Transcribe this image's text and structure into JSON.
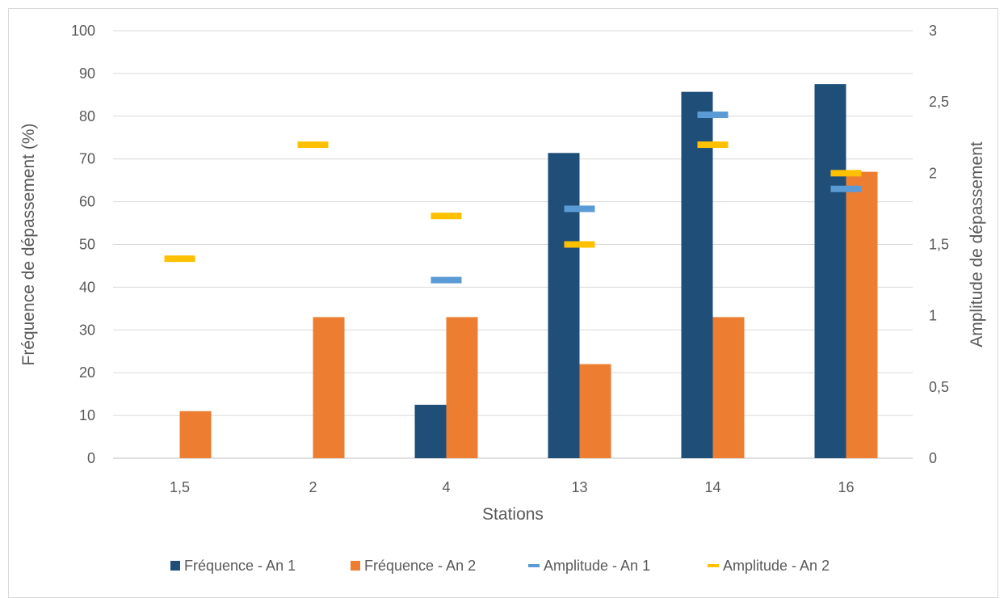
{
  "chart_data": {
    "type": "bar",
    "categories": [
      "1,5",
      "2",
      "4",
      "13",
      "14",
      "16"
    ],
    "series": [
      {
        "name": "Fréquence - An 1",
        "kind": "bar",
        "axis": "left",
        "color": "#1f4e79",
        "values": [
          0,
          0,
          12.5,
          71.4,
          85.7,
          87.5
        ]
      },
      {
        "name": "Fréquence - An 2",
        "kind": "bar",
        "axis": "left",
        "color": "#ed7d31",
        "values": [
          11,
          33,
          33,
          22,
          33,
          67
        ]
      },
      {
        "name": "Amplitude - An 1",
        "kind": "marker",
        "axis": "right",
        "color": "#5b9bd5",
        "values": [
          null,
          null,
          1.25,
          1.75,
          2.41,
          1.89
        ]
      },
      {
        "name": "Amplitude - An 2",
        "kind": "marker",
        "axis": "right",
        "color": "#ffc000",
        "values": [
          1.4,
          2.2,
          1.7,
          1.5,
          2.2,
          2.0
        ]
      }
    ],
    "xlabel": "Stations",
    "ylabel": "Fréquence de dépassement (%)",
    "y2label": "Amplitude de dépassement",
    "ylim": [
      0,
      100
    ],
    "y2lim": [
      0,
      3
    ],
    "yticks": [
      "0",
      "10",
      "20",
      "30",
      "40",
      "50",
      "60",
      "70",
      "80",
      "90",
      "100"
    ],
    "y2ticks": [
      "0",
      "0,5",
      "1",
      "1,5",
      "2",
      "2,5",
      "3"
    ],
    "grid": true,
    "legend_position": "bottom"
  }
}
